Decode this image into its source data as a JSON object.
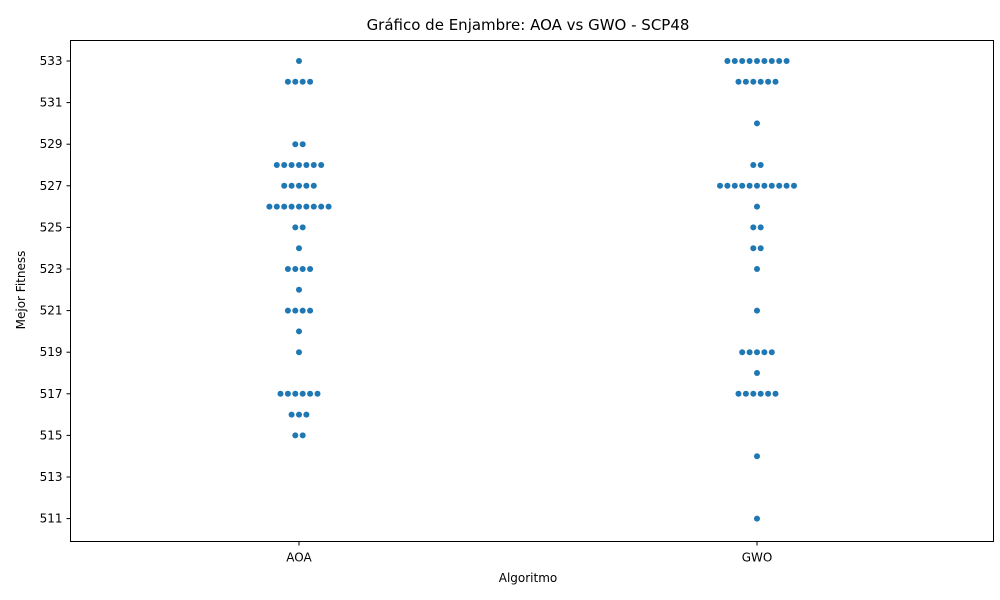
{
  "chart_data": {
    "type": "scatter",
    "subtype": "swarm",
    "title": "Gráfico de Enjambre: AOA vs GWO - SCP48",
    "xlabel": "Algoritmo",
    "ylabel": "Mejor Fitness",
    "categories": [
      "AOA",
      "GWO"
    ],
    "ylim": [
      510,
      534
    ],
    "yticks": [
      511,
      513,
      515,
      517,
      519,
      521,
      523,
      525,
      527,
      529,
      531,
      533
    ],
    "grid": false,
    "legend": "none",
    "marker_color": "#1f77b4",
    "series": [
      {
        "category": "AOA",
        "values": [
          533,
          532,
          532,
          532,
          532,
          529,
          529,
          528,
          528,
          528,
          528,
          528,
          528,
          528,
          527,
          527,
          527,
          527,
          527,
          526,
          526,
          526,
          526,
          526,
          526,
          526,
          526,
          526,
          525,
          525,
          524,
          523,
          523,
          523,
          523,
          522,
          521,
          521,
          521,
          521,
          520,
          519,
          517,
          517,
          517,
          517,
          517,
          517,
          516,
          516,
          516,
          515,
          515
        ]
      },
      {
        "category": "GWO",
        "values": [
          533,
          533,
          533,
          533,
          533,
          533,
          533,
          533,
          533,
          532,
          532,
          532,
          532,
          532,
          532,
          530,
          528,
          528,
          527,
          527,
          527,
          527,
          527,
          527,
          527,
          527,
          527,
          527,
          527,
          526,
          525,
          525,
          524,
          524,
          523,
          521,
          519,
          519,
          519,
          519,
          519,
          518,
          517,
          517,
          517,
          517,
          517,
          517,
          514,
          511
        ]
      }
    ]
  }
}
